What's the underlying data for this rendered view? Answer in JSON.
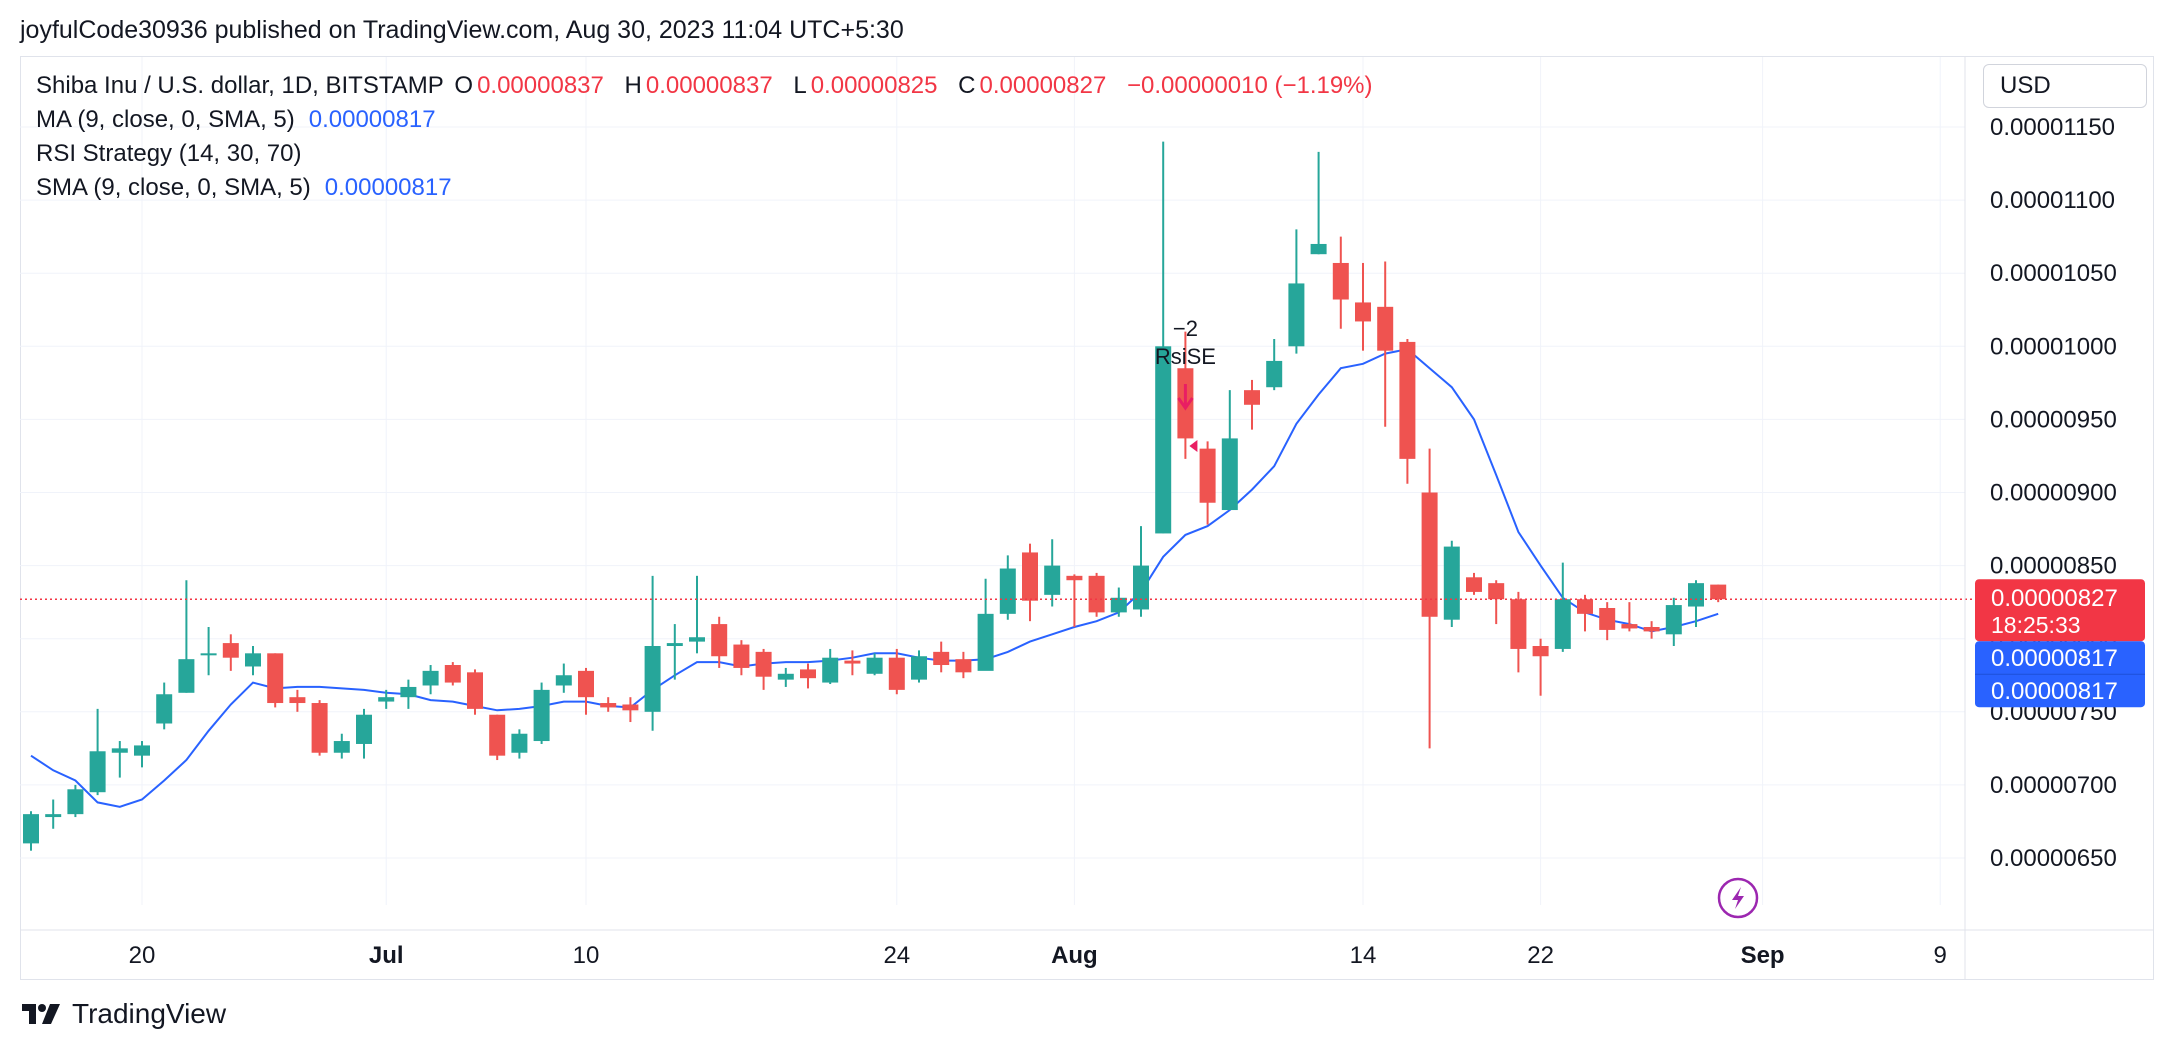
{
  "header": {
    "publisher": "joyfulCode30936 published on TradingView.com, Aug 30, 2023 11:04 UTC+5:30"
  },
  "legend": {
    "symbol": "Shiba Inu / U.S. dollar, 1D, BITSTAMP",
    "o_label": "O",
    "o_value": "0.00000837",
    "h_label": "H",
    "h_value": "0.00000837",
    "l_label": "L",
    "l_value": "0.00000825",
    "c_label": "C",
    "c_value": "0.00000827",
    "change": "−0.00000010 (−1.19%)",
    "ma_label": "MA (9, close, 0, SMA, 5)",
    "ma_value": "0.00000817",
    "rsi_label": "RSI Strategy (14, 30, 70)",
    "sma_label": "SMA (9, close, 0, SMA, 5)",
    "sma_value": "0.00000817"
  },
  "currency": "USD",
  "brand": "TradingView",
  "colors": {
    "up": "#26a69a",
    "down": "#ef5350",
    "ma": "#2962ff",
    "price_line": "#f23645",
    "signal": "#e91e63",
    "grid": "#f0f3fa",
    "lightning": "#9c27b0"
  },
  "chart_data": {
    "type": "candlestick",
    "y_axis": {
      "min": 6.2e-06,
      "max": 1.17e-05,
      "ticks": [
        6.5e-06,
        7e-06,
        7.5e-06,
        8e-06,
        8.5e-06,
        9e-06,
        9.5e-06,
        1e-05,
        1.05e-05,
        1.1e-05,
        1.15e-05
      ],
      "tick_labels": [
        "0.00000650",
        "0.00000700",
        "0.00000750",
        "0.00000800",
        "0.00000850",
        "0.00000900",
        "0.00000950",
        "0.00001000",
        "0.00001050",
        "0.00001100",
        "0.00001150"
      ]
    },
    "x_axis": {
      "labels": [
        {
          "text": "20",
          "index": 5,
          "bold": false
        },
        {
          "text": "Jul",
          "index": 16,
          "bold": true
        },
        {
          "text": "10",
          "index": 25,
          "bold": false
        },
        {
          "text": "24",
          "index": 39,
          "bold": false
        },
        {
          "text": "Aug",
          "index": 47,
          "bold": true
        },
        {
          "text": "14",
          "index": 60,
          "bold": false
        },
        {
          "text": "22",
          "index": 68,
          "bold": false
        },
        {
          "text": "Sep",
          "index": 78,
          "bold": true
        },
        {
          "text": "9",
          "index": 86,
          "bold": false
        }
      ]
    },
    "candles": [
      [
        6.6e-06,
        6.8e-06,
        6.82e-06,
        6.55e-06
      ],
      [
        6.78e-06,
        6.8e-06,
        6.9e-06,
        6.7e-06
      ],
      [
        6.8e-06,
        6.97e-06,
        7e-06,
        6.78e-06
      ],
      [
        6.95e-06,
        7.23e-06,
        7.52e-06,
        6.93e-06
      ],
      [
        7.22e-06,
        7.25e-06,
        7.3e-06,
        7.05e-06
      ],
      [
        7.2e-06,
        7.27e-06,
        7.3e-06,
        7.12e-06
      ],
      [
        7.42e-06,
        7.62e-06,
        7.7e-06,
        7.38e-06
      ],
      [
        7.63e-06,
        7.86e-06,
        8.4e-06,
        7.63e-06
      ],
      [
        7.9e-06,
        7.9e-06,
        8.08e-06,
        7.75e-06
      ],
      [
        7.97e-06,
        7.87e-06,
        8.03e-06,
        7.78e-06
      ],
      [
        7.81e-06,
        7.9e-06,
        7.95e-06,
        7.75e-06
      ],
      [
        7.9e-06,
        7.56e-06,
        7.9e-06,
        7.53e-06
      ],
      [
        7.6e-06,
        7.56e-06,
        7.65e-06,
        7.5e-06
      ],
      [
        7.56e-06,
        7.22e-06,
        7.58e-06,
        7.2e-06
      ],
      [
        7.22e-06,
        7.3e-06,
        7.35e-06,
        7.18e-06
      ],
      [
        7.28e-06,
        7.48e-06,
        7.52e-06,
        7.18e-06
      ],
      [
        7.57e-06,
        7.6e-06,
        7.65e-06,
        7.52e-06
      ],
      [
        7.6e-06,
        7.67e-06,
        7.72e-06,
        7.52e-06
      ],
      [
        7.68e-06,
        7.78e-06,
        7.82e-06,
        7.62e-06
      ],
      [
        7.82e-06,
        7.7e-06,
        7.84e-06,
        7.68e-06
      ],
      [
        7.77e-06,
        7.52e-06,
        7.79e-06,
        7.48e-06
      ],
      [
        7.48e-06,
        7.2e-06,
        7.48e-06,
        7.17e-06
      ],
      [
        7.22e-06,
        7.35e-06,
        7.38e-06,
        7.18e-06
      ],
      [
        7.3e-06,
        7.65e-06,
        7.7e-06,
        7.28e-06
      ],
      [
        7.68e-06,
        7.75e-06,
        7.83e-06,
        7.63e-06
      ],
      [
        7.78e-06,
        7.6e-06,
        7.8e-06,
        7.48e-06
      ],
      [
        7.56e-06,
        7.53e-06,
        7.6e-06,
        7.5e-06
      ],
      [
        7.55e-06,
        7.51e-06,
        7.6e-06,
        7.43e-06
      ],
      [
        7.5e-06,
        7.95e-06,
        8.43e-06,
        7.37e-06
      ],
      [
        7.95e-06,
        7.97e-06,
        8.1e-06,
        7.72e-06
      ],
      [
        7.98e-06,
        8.01e-06,
        8.43e-06,
        7.9e-06
      ],
      [
        8.1e-06,
        7.88e-06,
        8.15e-06,
        7.8e-06
      ],
      [
        7.96e-06,
        7.8e-06,
        7.99e-06,
        7.75e-06
      ],
      [
        7.91e-06,
        7.74e-06,
        7.93e-06,
        7.65e-06
      ],
      [
        7.72e-06,
        7.76e-06,
        7.8e-06,
        7.67e-06
      ],
      [
        7.79e-06,
        7.73e-06,
        7.83e-06,
        7.66e-06
      ],
      [
        7.7e-06,
        7.87e-06,
        7.93e-06,
        7.69e-06
      ],
      [
        7.85e-06,
        7.83e-06,
        7.92e-06,
        7.75e-06
      ],
      [
        7.76e-06,
        7.87e-06,
        7.9e-06,
        7.75e-06
      ],
      [
        7.87e-06,
        7.65e-06,
        7.93e-06,
        7.62e-06
      ],
      [
        7.72e-06,
        7.88e-06,
        7.92e-06,
        7.7e-06
      ],
      [
        7.91e-06,
        7.82e-06,
        7.98e-06,
        7.77e-06
      ],
      [
        7.86e-06,
        7.77e-06,
        7.91e-06,
        7.73e-06
      ],
      [
        7.78e-06,
        8.17e-06,
        8.41e-06,
        7.8e-06
      ],
      [
        8.17e-06,
        8.48e-06,
        8.57e-06,
        8.13e-06
      ],
      [
        8.59e-06,
        8.26e-06,
        8.65e-06,
        8.12e-06
      ],
      [
        8.3e-06,
        8.5e-06,
        8.68e-06,
        8.22e-06
      ],
      [
        8.43e-06,
        8.4e-06,
        8.44e-06,
        8.08e-06
      ],
      [
        8.43e-06,
        8.18e-06,
        8.45e-06,
        8.15e-06
      ],
      [
        8.18e-06,
        8.28e-06,
        8.35e-06,
        8.15e-06
      ],
      [
        8.2e-06,
        8.5e-06,
        8.77e-06,
        8.15e-06
      ],
      [
        8.72e-06,
        1e-05,
        1.14e-05,
        8.72e-06
      ],
      [
        9.85e-06,
        9.37e-06,
        1.01e-05,
        9.23e-06
      ],
      [
        9.3e-06,
        8.93e-06,
        9.35e-06,
        8.78e-06
      ],
      [
        8.88e-06,
        9.37e-06,
        9.7e-06,
        8.88e-06
      ],
      [
        9.7e-06,
        9.6e-06,
        9.77e-06,
        9.43e-06
      ],
      [
        9.72e-06,
        9.9e-06,
        1.005e-05,
        9.7e-06
      ],
      [
        1e-05,
        1.043e-05,
        1.08e-05,
        9.95e-06
      ],
      [
        1.063e-05,
        1.07e-05,
        1.133e-05,
        1.063e-05
      ],
      [
        1.057e-05,
        1.032e-05,
        1.075e-05,
        1.012e-05
      ],
      [
        1.03e-05,
        1.017e-05,
        1.057e-05,
        9.97e-06
      ],
      [
        1.027e-05,
        9.97e-06,
        1.058e-05,
        9.45e-06
      ],
      [
        1.003e-05,
        9.23e-06,
        1.005e-05,
        9.06e-06
      ],
      [
        9e-06,
        8.15e-06,
        9.3e-06,
        7.25e-06
      ],
      [
        8.13e-06,
        8.63e-06,
        8.67e-06,
        8.08e-06
      ],
      [
        8.42e-06,
        8.32e-06,
        8.45e-06,
        8.3e-06
      ],
      [
        8.38e-06,
        8.27e-06,
        8.4e-06,
        8.1e-06
      ],
      [
        8.27e-06,
        7.93e-06,
        8.32e-06,
        7.77e-06
      ],
      [
        7.95e-06,
        7.88e-06,
        8e-06,
        7.61e-06
      ],
      [
        7.93e-06,
        8.27e-06,
        8.52e-06,
        7.91e-06
      ],
      [
        8.27e-06,
        8.17e-06,
        8.3e-06,
        8.05e-06
      ],
      [
        8.21e-06,
        8.06e-06,
        8.25e-06,
        7.99e-06
      ],
      [
        8.1e-06,
        8.07e-06,
        8.25e-06,
        8.05e-06
      ],
      [
        8.08e-06,
        8.05e-06,
        8.12e-06,
        8e-06
      ],
      [
        8.03e-06,
        8.23e-06,
        8.28e-06,
        7.95e-06
      ],
      [
        8.22e-06,
        8.38e-06,
        8.4e-06,
        8.08e-06
      ],
      [
        8.37e-06,
        8.27e-06,
        8.37e-06,
        8.25e-06
      ]
    ],
    "ma": [
      [
        0,
        7.2e-06
      ],
      [
        1,
        7.1e-06
      ],
      [
        2,
        7.03e-06
      ],
      [
        3,
        6.88e-06
      ],
      [
        4,
        6.85e-06
      ],
      [
        5,
        6.9e-06
      ],
      [
        6,
        7.03e-06
      ],
      [
        7,
        7.17e-06
      ],
      [
        8,
        7.37e-06
      ],
      [
        9,
        7.55e-06
      ],
      [
        10,
        7.7e-06
      ],
      [
        11,
        7.66e-06
      ],
      [
        12,
        7.67e-06
      ],
      [
        13,
        7.67e-06
      ],
      [
        14,
        7.66e-06
      ],
      [
        15,
        7.65e-06
      ],
      [
        16,
        7.63e-06
      ],
      [
        17,
        7.62e-06
      ],
      [
        18,
        7.58e-06
      ],
      [
        19,
        7.57e-06
      ],
      [
        20,
        7.54e-06
      ],
      [
        21,
        7.51e-06
      ],
      [
        22,
        7.52e-06
      ],
      [
        23,
        7.54e-06
      ],
      [
        24,
        7.57e-06
      ],
      [
        25,
        7.57e-06
      ],
      [
        26,
        7.54e-06
      ],
      [
        27,
        7.53e-06
      ],
      [
        28,
        7.65e-06
      ],
      [
        29,
        7.75e-06
      ],
      [
        30,
        7.84e-06
      ],
      [
        31,
        7.84e-06
      ],
      [
        32,
        7.81e-06
      ],
      [
        33,
        7.83e-06
      ],
      [
        34,
        7.84e-06
      ],
      [
        35,
        7.84e-06
      ],
      [
        36,
        7.85e-06
      ],
      [
        37,
        7.87e-06
      ],
      [
        38,
        7.9e-06
      ],
      [
        39,
        7.9e-06
      ],
      [
        40,
        7.87e-06
      ],
      [
        41,
        7.85e-06
      ],
      [
        42,
        7.85e-06
      ],
      [
        43,
        7.86e-06
      ],
      [
        44,
        7.91e-06
      ],
      [
        45,
        7.98e-06
      ],
      [
        46,
        8.03e-06
      ],
      [
        47,
        8.08e-06
      ],
      [
        48,
        8.12e-06
      ],
      [
        49,
        8.18e-06
      ],
      [
        50,
        8.32e-06
      ],
      [
        51,
        8.56e-06
      ],
      [
        52,
        8.71e-06
      ],
      [
        53,
        8.77e-06
      ],
      [
        54,
        8.88e-06
      ],
      [
        55,
        9.02e-06
      ],
      [
        56,
        9.18e-06
      ],
      [
        57,
        9.47e-06
      ],
      [
        58,
        9.67e-06
      ],
      [
        59,
        9.85e-06
      ],
      [
        60,
        9.88e-06
      ],
      [
        61,
        9.95e-06
      ],
      [
        62,
        9.98e-06
      ],
      [
        63,
        9.85e-06
      ],
      [
        64,
        9.72e-06
      ],
      [
        65,
        9.5e-06
      ],
      [
        66,
        9.12e-06
      ],
      [
        67,
        8.73e-06
      ],
      [
        68,
        8.5e-06
      ],
      [
        69,
        8.28e-06
      ],
      [
        70,
        8.18e-06
      ],
      [
        71,
        8.13e-06
      ],
      [
        72,
        8.1e-06
      ],
      [
        73,
        8.05e-06
      ],
      [
        74,
        8.08e-06
      ],
      [
        75,
        8.12e-06
      ],
      [
        76,
        8.17e-06
      ]
    ],
    "last_price": {
      "value": 8.27e-06,
      "label": "0.00000827",
      "countdown": "18:25:33"
    },
    "ma_price": {
      "value": 8.17e-06,
      "label": "0.00000817",
      "label2": "0.00000817"
    },
    "signal": {
      "index": 51,
      "text1": "−2",
      "text2": "RsiSE"
    }
  }
}
